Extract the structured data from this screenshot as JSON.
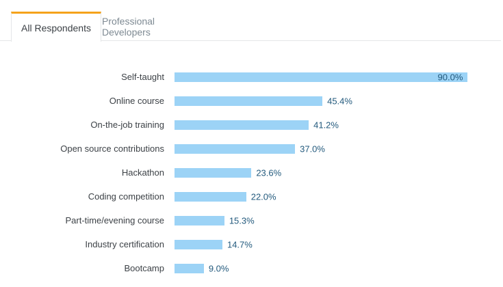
{
  "tabs": {
    "active": {
      "label": "All Respondents"
    },
    "inactive": {
      "label": "Professional Developers"
    }
  },
  "colors": {
    "accent_orange": "#F5A21B",
    "bar_blue": "#9CD3F6",
    "value_label_blue": "#235A7D",
    "category_text": "#3C4146",
    "tab_inactive_text": "#7E8A93",
    "border_gray": "#E4E6E8"
  },
  "chart_data": {
    "type": "bar",
    "orientation": "horizontal",
    "title": "",
    "categories": [
      "Self-taught",
      "Online course",
      "On-the-job training",
      "Open source contributions",
      "Hackathon",
      "Coding competition",
      "Part-time/evening course",
      "Industry certification",
      "Bootcamp"
    ],
    "values": [
      90.0,
      45.4,
      41.2,
      37.0,
      23.6,
      22.0,
      15.3,
      14.7,
      9.0
    ],
    "value_labels": [
      "90.0%",
      "45.4%",
      "41.2%",
      "37.0%",
      "23.6%",
      "22.0%",
      "15.3%",
      "14.7%",
      "9.0%"
    ],
    "xlim": [
      0,
      100
    ],
    "grid": false,
    "legend": "none"
  }
}
